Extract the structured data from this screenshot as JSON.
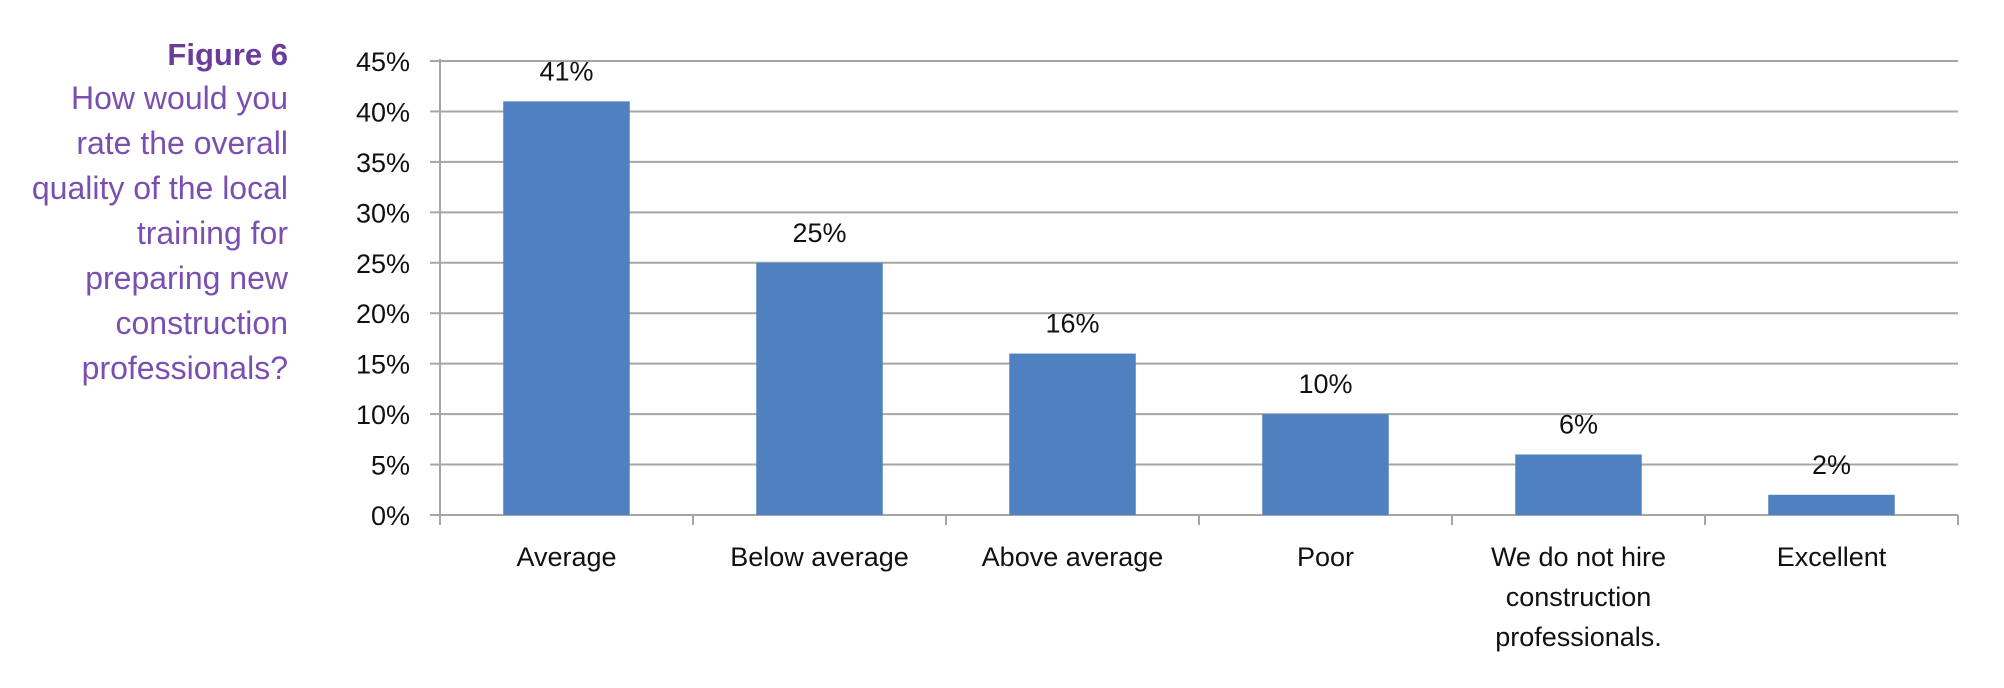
{
  "caption": {
    "figure_label": "Figure 6",
    "question": "How would you rate the overall quality of the local training for preparing new construction professionals?"
  },
  "chart_data": {
    "type": "bar",
    "categories": [
      "Average",
      "Below average",
      "Above average",
      "Poor",
      "We do not hire construction professionals.",
      "Excellent"
    ],
    "category_lines": [
      [
        "Average"
      ],
      [
        "Below average"
      ],
      [
        "Above average"
      ],
      [
        "Poor"
      ],
      [
        "We do not hire",
        "construction",
        "professionals."
      ],
      [
        "Excellent"
      ]
    ],
    "values": [
      41,
      25,
      16,
      10,
      6,
      2
    ],
    "value_labels": [
      "41%",
      "25%",
      "16%",
      "10%",
      "6%",
      "2%"
    ],
    "ylim": [
      0,
      45
    ],
    "yticks": [
      "0%",
      "5%",
      "10%",
      "15%",
      "20%",
      "25%",
      "30%",
      "35%",
      "40%",
      "45%"
    ],
    "grid": true,
    "legend": "none",
    "bar_color": "#4f81c0",
    "grid_color": "#a6a6a6"
  }
}
